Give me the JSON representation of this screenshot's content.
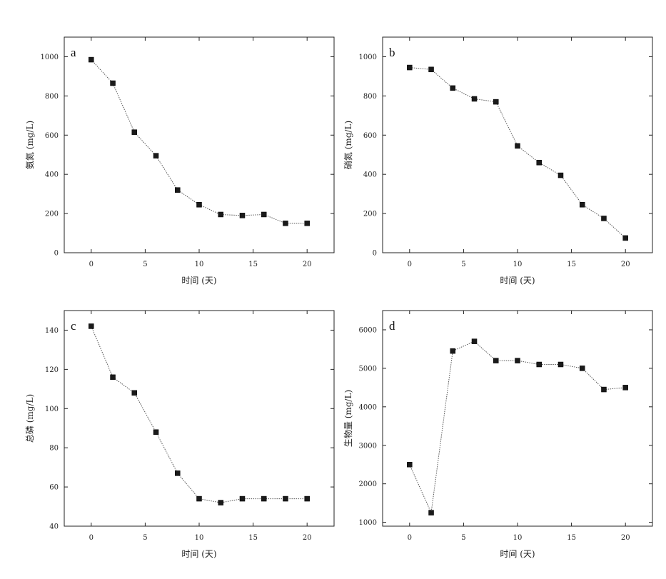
{
  "chart_data": [
    {
      "type": "line",
      "panel_label": "a",
      "xlabel": "时间 (天)",
      "ylabel": "氨氮 (mg/L)",
      "xlim": [
        -2.5,
        22.5
      ],
      "ylim": [
        0,
        1100
      ],
      "xticks": [
        0,
        5,
        10,
        15,
        20
      ],
      "yticks": [
        0,
        200,
        400,
        600,
        800,
        1000
      ],
      "grid": false,
      "x": [
        0,
        2,
        4,
        6,
        8,
        10,
        12,
        14,
        16,
        18,
        20
      ],
      "series": [
        {
          "values": [
            985,
            865,
            615,
            495,
            320,
            245,
            195,
            190,
            195,
            150,
            150
          ]
        }
      ]
    },
    {
      "type": "line",
      "panel_label": "b",
      "xlabel": "时间 (天)",
      "ylabel": "硝氮 (mg/L)",
      "xlim": [
        -2.5,
        22.5
      ],
      "ylim": [
        0,
        1100
      ],
      "xticks": [
        0,
        5,
        10,
        15,
        20
      ],
      "yticks": [
        0,
        200,
        400,
        600,
        800,
        1000
      ],
      "grid": false,
      "x": [
        0,
        2,
        4,
        6,
        8,
        10,
        12,
        14,
        16,
        18,
        20
      ],
      "series": [
        {
          "values": [
            945,
            935,
            840,
            785,
            770,
            545,
            460,
            395,
            245,
            175,
            75
          ]
        }
      ]
    },
    {
      "type": "line",
      "panel_label": "c",
      "xlabel": "时间 (天)",
      "ylabel": "总磷 (mg/L)",
      "xlim": [
        -2.5,
        22.5
      ],
      "ylim": [
        40,
        150
      ],
      "xticks": [
        0,
        5,
        10,
        15,
        20
      ],
      "yticks": [
        40,
        60,
        80,
        100,
        120,
        140
      ],
      "grid": false,
      "x": [
        0,
        2,
        4,
        6,
        8,
        10,
        12,
        14,
        16,
        18,
        20
      ],
      "series": [
        {
          "values": [
            142,
            116,
            108,
            88,
            67,
            54,
            52,
            54,
            54,
            54,
            54
          ]
        }
      ]
    },
    {
      "type": "line",
      "panel_label": "d",
      "xlabel": "时间 (天)",
      "ylabel": "生物量 (mg/L)",
      "xlim": [
        -2.5,
        22.5
      ],
      "ylim": [
        900,
        6500
      ],
      "xticks": [
        0,
        5,
        10,
        15,
        20
      ],
      "yticks": [
        1000,
        2000,
        3000,
        4000,
        5000,
        6000
      ],
      "grid": false,
      "x": [
        0,
        2,
        4,
        6,
        8,
        10,
        12,
        14,
        16,
        18,
        20
      ],
      "series": [
        {
          "values": [
            2500,
            1250,
            5450,
            5700,
            5200,
            5200,
            5100,
            5100,
            5000,
            4450,
            4500
          ]
        }
      ]
    }
  ]
}
